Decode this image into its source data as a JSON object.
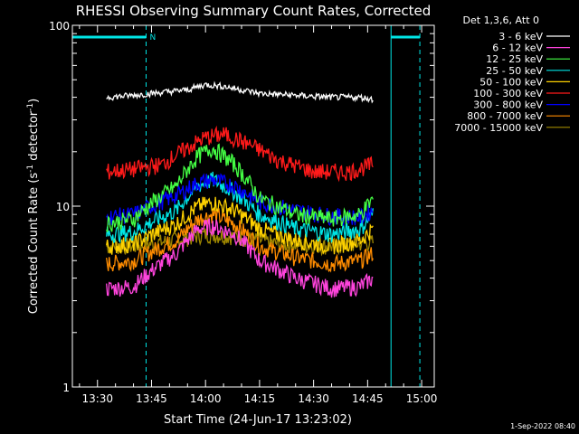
{
  "chart_data": {
    "type": "line",
    "title": "RHESSI Observing Summary Count Rates, Corrected",
    "xlabel": "Start Time (24-Jun-17 13:23:02)",
    "ylabel_pre": "Corrected Count Rate (s",
    "ylabel_sup1": "-1",
    "ylabel_mid": " detector",
    "ylabel_sup2": "-1",
    "ylabel_post": ")",
    "y_scale": "log",
    "ylim": [
      1,
      100
    ],
    "y_ticks": [
      {
        "value": 1,
        "label": "1"
      },
      {
        "value": 10,
        "label": "10"
      },
      {
        "value": 100,
        "label": "100"
      }
    ],
    "xlim": [
      "13:23:02",
      "15:03"
    ],
    "x_ticks": [
      "13:30",
      "13:45",
      "14:00",
      "14:15",
      "14:30",
      "14:45",
      "15:00"
    ],
    "x_ticks_min": [
      30,
      45,
      60,
      75,
      90,
      105,
      120
    ],
    "xlim_min": [
      23.03,
      123.5
    ],
    "legend_title": "Det 1,3,6, Att 0",
    "legend_position": "top-right outside",
    "series": [
      {
        "name": "3 - 6 keV",
        "color": "#ffffff",
        "x": [
          32.5,
          40,
          55,
          60,
          65,
          75,
          85,
          95,
          103,
          106.5
        ],
        "values": [
          40,
          41,
          44,
          47,
          46,
          42,
          41,
          40,
          40,
          39
        ]
      },
      {
        "name": "6 - 12 keV",
        "color": "#ff44dd",
        "x": [
          32.5,
          40,
          52,
          58,
          62,
          68,
          75,
          85,
          95,
          103,
          106.5
        ],
        "values": [
          3.5,
          3.6,
          5.5,
          7.5,
          7.8,
          7,
          5,
          4,
          3.5,
          3.6,
          4
        ]
      },
      {
        "name": "12 - 25 keV",
        "color": "#44ff44",
        "x": [
          32.5,
          40,
          52,
          58,
          62,
          68,
          75,
          85,
          95,
          103,
          106.5
        ],
        "values": [
          8,
          8.5,
          13,
          19,
          21,
          17,
          11,
          9,
          8.5,
          9,
          11
        ]
      },
      {
        "name": "25 - 50 keV",
        "color": "#00e5e5",
        "x": [
          32.5,
          40,
          52,
          58,
          62,
          68,
          75,
          85,
          95,
          103,
          106.5
        ],
        "values": [
          7,
          7.2,
          9.5,
          13,
          14,
          12,
          9,
          7.5,
          7,
          7.5,
          9
        ]
      },
      {
        "name": "50 - 100 keV",
        "color": "#ffd200",
        "x": [
          32.5,
          40,
          52,
          58,
          62,
          68,
          75,
          85,
          95,
          103,
          106.5
        ],
        "values": [
          6,
          6.2,
          8,
          10,
          10.5,
          9.5,
          7.5,
          6.5,
          6,
          6.5,
          7.5
        ]
      },
      {
        "name": "100 - 300 keV",
        "color": "#ff1a1a",
        "x": [
          32.5,
          40,
          48,
          55,
          60,
          65,
          72,
          80,
          90,
          100,
          106.5
        ],
        "values": [
          15.5,
          16,
          17,
          21,
          24,
          25,
          22,
          18,
          15.5,
          15.5,
          17
        ]
      },
      {
        "name": "300 - 800 keV",
        "color": "#0000ff",
        "x": [
          32.5,
          40,
          52,
          58,
          62,
          68,
          75,
          85,
          95,
          103,
          106.5
        ],
        "values": [
          8.7,
          9,
          11.5,
          13.5,
          14,
          13,
          10.5,
          9.5,
          8.8,
          8.7,
          9.5
        ]
      },
      {
        "name": "800 - 7000 keV",
        "color": "#ff8c00",
        "x": [
          32.5,
          40,
          52,
          58,
          62,
          68,
          75,
          85,
          95,
          103,
          106.5
        ],
        "values": [
          4.8,
          5,
          6.5,
          8.5,
          9,
          8,
          6,
          5.2,
          4.8,
          5,
          5.5
        ]
      },
      {
        "name": "7000 - 15000 keV",
        "color": "#a08800",
        "x": [
          32.5,
          40,
          52,
          60,
          68,
          80,
          95,
          106.5
        ],
        "values": [
          6,
          6,
          6.5,
          7,
          6.8,
          6.2,
          6,
          6.3
        ]
      }
    ],
    "markers": {
      "night_label": "N",
      "night_start_min": 43.5,
      "night_end_min": 119.5,
      "night_top_left_min": [
        23.03,
        43.5
      ],
      "night_top_right_min": [
        111.5,
        119.5
      ],
      "saa_solid_lines_min": [
        23.03,
        111.5
      ]
    }
  },
  "footer": {
    "timestamp": "1-Sep-2022 08:40"
  },
  "colors": {
    "background": "#000000",
    "axes": "#ffffff",
    "markers": "#00e5e5"
  }
}
